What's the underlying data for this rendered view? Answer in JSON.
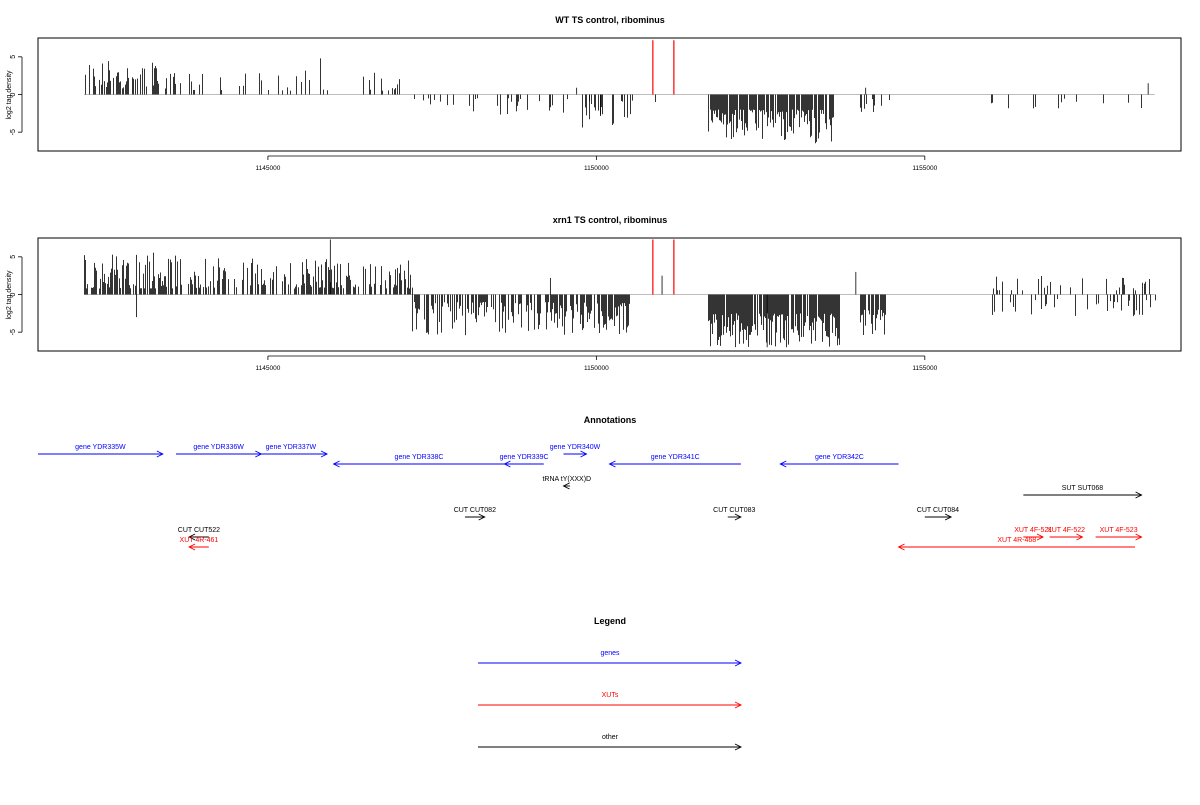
{
  "chart_data": [
    {
      "type": "bar",
      "title": "WT TS control, ribominus",
      "xlabel": "",
      "ylabel": "log2 tag density",
      "xlim": [
        1141500,
        1158900
      ],
      "ylim": [
        -7.5,
        7.5
      ],
      "xticks": [
        1145000,
        1150000,
        1155000
      ],
      "xtick_labels": [
        "1145000",
        "1150000",
        "1155000"
      ],
      "yticks": [
        -5,
        0,
        5
      ],
      "ytick_labels": [
        "-5",
        "0",
        "5"
      ],
      "baseline": {
        "x": [
          1142200,
          1158500
        ],
        "y": 0
      },
      "series_colors": [
        "#000000",
        "#ff0000"
      ],
      "regions": [
        {
          "start": 1142200,
          "end": 1143600,
          "sign": 1,
          "min": 0.8,
          "max": 4.6,
          "density": 0.55
        },
        {
          "start": 1143600,
          "end": 1146000,
          "sign": 1,
          "min": 0.5,
          "max": 3.2,
          "density": 0.22
        },
        {
          "start": 1146400,
          "end": 1147000,
          "sign": 1,
          "min": 0.5,
          "max": 3.2,
          "density": 0.25
        },
        {
          "start": 1147200,
          "end": 1150300,
          "sign": -1,
          "min": 0.5,
          "max": 2.8,
          "density": 0.18
        },
        {
          "start": 1149700,
          "end": 1150700,
          "sign": -1,
          "min": 0.8,
          "max": 4.5,
          "density": 0.3
        },
        {
          "start": 1151700,
          "end": 1153600,
          "sign": -1,
          "min": 2.0,
          "max": 6.5,
          "density": 0.85
        },
        {
          "start": 1154000,
          "end": 1154500,
          "sign": -1,
          "min": 0.6,
          "max": 2.4,
          "density": 0.35
        },
        {
          "start": 1156000,
          "end": 1158300,
          "sign": -1,
          "min": 0.5,
          "max": 2.0,
          "density": 0.08
        }
      ],
      "bars": [
        {
          "x": 1150860,
          "y": 7.2,
          "color": "#ff0000"
        },
        {
          "x": 1151180,
          "y": 7.2,
          "color": "#ff0000"
        },
        {
          "x": 1145800,
          "y": 4.8,
          "color": "#000000"
        },
        {
          "x": 1149700,
          "y": 0.9,
          "color": "#000000"
        },
        {
          "x": 1150900,
          "y": -1.0,
          "color": "#000000"
        },
        {
          "x": 1154100,
          "y": 0.9,
          "color": "#000000"
        },
        {
          "x": 1158400,
          "y": 1.5,
          "color": "#000000"
        },
        {
          "x": 1158300,
          "y": -1.8,
          "color": "#000000"
        }
      ]
    },
    {
      "type": "bar",
      "title": "xrn1 TS control, ribominus",
      "xlabel": "",
      "ylabel": "log2 tag density",
      "xlim": [
        1141500,
        1158900
      ],
      "ylim": [
        -7.5,
        7.5
      ],
      "xticks": [
        1145000,
        1150000,
        1155000
      ],
      "xtick_labels": [
        "1145000",
        "1150000",
        "1155000"
      ],
      "yticks": [
        -5,
        0,
        5
      ],
      "ytick_labels": [
        "-5",
        "0",
        "5"
      ],
      "baseline": {
        "x": [
          1142200,
          1158500
        ],
        "y": 0
      },
      "series_colors": [
        "#000000",
        "#ff0000"
      ],
      "regions": [
        {
          "start": 1142200,
          "end": 1143600,
          "sign": 1,
          "min": 0.8,
          "max": 6.0,
          "density": 0.7
        },
        {
          "start": 1143600,
          "end": 1147200,
          "sign": 1,
          "min": 0.8,
          "max": 4.8,
          "density": 0.55
        },
        {
          "start": 1147200,
          "end": 1149800,
          "sign": -1,
          "min": 1.0,
          "max": 5.5,
          "density": 0.6
        },
        {
          "start": 1149800,
          "end": 1150500,
          "sign": -1,
          "min": 1.0,
          "max": 6.0,
          "density": 0.7
        },
        {
          "start": 1151700,
          "end": 1153700,
          "sign": -1,
          "min": 2.5,
          "max": 7.0,
          "density": 0.9
        },
        {
          "start": 1154000,
          "end": 1154400,
          "sign": -1,
          "min": 2.0,
          "max": 5.5,
          "density": 0.8
        },
        {
          "start": 1156000,
          "end": 1158500,
          "sign": 1,
          "min": 0.5,
          "max": 2.5,
          "density": 0.2
        },
        {
          "start": 1156000,
          "end": 1158500,
          "sign": -1,
          "min": 0.5,
          "max": 3.0,
          "density": 0.2
        }
      ],
      "bars": [
        {
          "x": 1150860,
          "y": 7.3,
          "color": "#ff0000"
        },
        {
          "x": 1151180,
          "y": 7.3,
          "color": "#ff0000"
        },
        {
          "x": 1143000,
          "y": -3.0,
          "color": "#000000"
        },
        {
          "x": 1145950,
          "y": 7.3,
          "color": "#000000"
        },
        {
          "x": 1149300,
          "y": 2.2,
          "color": "#000000"
        },
        {
          "x": 1151000,
          "y": 2.5,
          "color": "#000000"
        },
        {
          "x": 1153950,
          "y": 3.0,
          "color": "#000000"
        },
        {
          "x": 1152600,
          "y": -7.0,
          "color": "#000000"
        }
      ]
    }
  ],
  "annotations": {
    "title": "Annotations",
    "items": [
      {
        "label": "gene YDR335W",
        "color": "#0000ff",
        "start": 1141500,
        "end": 1143400,
        "dir": 1,
        "row": 0
      },
      {
        "label": "gene YDR336W",
        "color": "#0000ff",
        "start": 1143600,
        "end": 1144900,
        "dir": 1,
        "row": 0
      },
      {
        "label": "gene YDR337W",
        "color": "#0000ff",
        "start": 1144800,
        "end": 1145900,
        "dir": 1,
        "row": 0
      },
      {
        "label": "gene YDR338C",
        "color": "#0000ff",
        "start": 1146000,
        "end": 1148600,
        "dir": -1,
        "row": 1
      },
      {
        "label": "gene YDR339C",
        "color": "#0000ff",
        "start": 1148600,
        "end": 1149200,
        "dir": -1,
        "row": 1
      },
      {
        "label": "gene YDR340W",
        "color": "#0000ff",
        "start": 1149500,
        "end": 1149850,
        "dir": 1,
        "row": 0
      },
      {
        "label": "gene YDR341C",
        "color": "#0000ff",
        "start": 1150200,
        "end": 1152200,
        "dir": -1,
        "row": 1
      },
      {
        "label": "gene YDR342C",
        "color": "#0000ff",
        "start": 1152800,
        "end": 1154600,
        "dir": -1,
        "row": 1
      },
      {
        "label": "tRNA tY(XXX)D",
        "color": "#000000",
        "start": 1149500,
        "end": 1149600,
        "dir": -1,
        "row": 2
      },
      {
        "label": "SUT SUT068",
        "color": "#000000",
        "start": 1156500,
        "end": 1158300,
        "dir": 1,
        "row": 3
      },
      {
        "label": "CUT CUT522",
        "color": "#000000",
        "start": 1143800,
        "end": 1144100,
        "dir": -1,
        "row": 5
      },
      {
        "label": "CUT CUT082",
        "color": "#000000",
        "start": 1148000,
        "end": 1148300,
        "dir": 1,
        "row": 4
      },
      {
        "label": "CUT CUT083",
        "color": "#000000",
        "start": 1152000,
        "end": 1152200,
        "dir": 1,
        "row": 4
      },
      {
        "label": "CUT CUT084",
        "color": "#000000",
        "start": 1155000,
        "end": 1155400,
        "dir": 1,
        "row": 4
      },
      {
        "label": "XUT 4R-461",
        "color": "#ff0000",
        "start": 1143800,
        "end": 1144100,
        "dir": -1,
        "row": 6
      },
      {
        "label": "XUT 4R-468",
        "color": "#ff0000",
        "start": 1154600,
        "end": 1158200,
        "dir": -1,
        "row": 6
      },
      {
        "label": "XUT 4F-521",
        "color": "#ff0000",
        "start": 1156500,
        "end": 1156800,
        "dir": 1,
        "row": 5
      },
      {
        "label": "XUT 4F-522",
        "color": "#ff0000",
        "start": 1156900,
        "end": 1157400,
        "dir": 1,
        "row": 5
      },
      {
        "label": "XUT 4F-523",
        "color": "#ff0000",
        "start": 1157600,
        "end": 1158300,
        "dir": 1,
        "row": 5
      }
    ]
  },
  "legend": {
    "title": "Legend",
    "entries": [
      {
        "label": "genes",
        "color": "#0000ff"
      },
      {
        "label": "XUTs",
        "color": "#ff0000"
      },
      {
        "label": "other",
        "color": "#000000"
      }
    ]
  }
}
